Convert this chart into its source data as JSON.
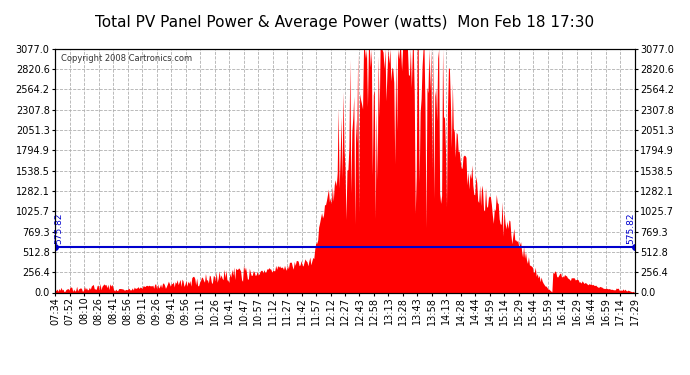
{
  "title": "Total PV Panel Power & Average Power (watts)  Mon Feb 18 17:30",
  "copyright": "Copyright 2008 Cartronics.com",
  "avg_value": 575.82,
  "y_max": 3077.0,
  "y_min": 0.0,
  "y_ticks": [
    0.0,
    256.4,
    512.8,
    769.3,
    1025.7,
    1282.1,
    1538.5,
    1794.9,
    2051.3,
    2307.8,
    2564.2,
    2820.6,
    3077.0
  ],
  "bar_color": "#ff0000",
  "avg_line_color": "#0000cd",
  "background_color": "#ffffff",
  "plot_bg_color": "#ffffff",
  "grid_color": "#b0b0b0",
  "title_fontsize": 11,
  "tick_fontsize": 7,
  "x_tick_labels": [
    "07:34",
    "07:52",
    "08:10",
    "08:26",
    "08:41",
    "08:56",
    "09:11",
    "09:26",
    "09:41",
    "09:56",
    "10:11",
    "10:26",
    "10:41",
    "10:47",
    "10:57",
    "11:12",
    "11:27",
    "11:42",
    "11:57",
    "12:12",
    "12:27",
    "12:43",
    "12:58",
    "13:13",
    "13:28",
    "13:43",
    "13:58",
    "14:13",
    "14:28",
    "14:44",
    "14:59",
    "15:14",
    "15:29",
    "15:44",
    "15:59",
    "16:14",
    "16:29",
    "16:44",
    "16:59",
    "17:14",
    "17:29"
  ]
}
